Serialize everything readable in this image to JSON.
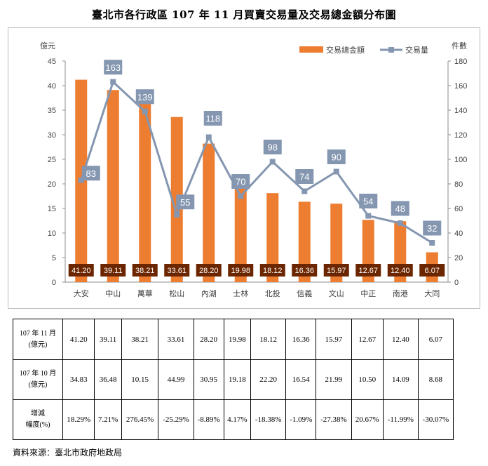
{
  "title": "臺北市各行政區 107 年 11 月買賣交易量及交易總金額分布圖",
  "source": "資料來源：臺北市政府地政局",
  "chart_data": {
    "type": "bar",
    "categories": [
      "大安",
      "中山",
      "萬華",
      "松山",
      "內湖",
      "士林",
      "北投",
      "信義",
      "文山",
      "中正",
      "南港",
      "大同"
    ],
    "series": [
      {
        "name": "交易總金額",
        "kind": "bar",
        "axis": "left",
        "color": "#ed7d31",
        "values": [
          41.2,
          39.11,
          38.21,
          33.61,
          28.2,
          19.98,
          18.12,
          16.36,
          15.97,
          12.67,
          12.4,
          6.07
        ]
      },
      {
        "name": "交易量",
        "kind": "line",
        "axis": "right",
        "color": "#8496b0",
        "values": [
          83,
          163,
          139,
          55,
          118,
          70,
          98,
          74,
          90,
          54,
          48,
          32
        ]
      }
    ],
    "bar_labels": [
      "41.20",
      "39.11",
      "38.21",
      "33.61",
      "28.20",
      "19.98",
      "18.12",
      "16.36",
      "15.97",
      "12.67",
      "12.40",
      "6.07"
    ],
    "line_labels": [
      "83",
      "163",
      "139",
      "55",
      "118",
      "70",
      "98",
      "74",
      "90",
      "54",
      "48",
      "32"
    ],
    "ylabel_left": "億元",
    "ylabel_right": "件數",
    "ylim_left": [
      0,
      45
    ],
    "yticks_left": [
      "0",
      "5",
      "10",
      "15",
      "20",
      "25",
      "30",
      "35",
      "40",
      "45"
    ],
    "ylim_right": [
      0,
      180
    ],
    "yticks_right": [
      "0",
      "20",
      "40",
      "60",
      "80",
      "100",
      "120",
      "140",
      "160",
      "180"
    ],
    "legend_position": "top-right",
    "grid": false,
    "label_box_color": "#6b2600",
    "line_label_box_color": "#8496b0"
  },
  "table": {
    "rows": [
      {
        "head_1": "107 年 11 月",
        "head_2": "(億元)",
        "values": [
          "41.20",
          "39.11",
          "38.21",
          "33.61",
          "28.20",
          "19.98",
          "18.12",
          "16.36",
          "15.97",
          "12.67",
          "12.40",
          "6.07"
        ]
      },
      {
        "head_1": "107 年 10 月",
        "head_2": "(億元)",
        "values": [
          "34.83",
          "36.48",
          "10.15",
          "44.99",
          "30.95",
          "19.18",
          "22.20",
          "16.54",
          "21.99",
          "10.50",
          "14.09",
          "8.68"
        ]
      },
      {
        "head_1": "增減",
        "head_2": "幅度(%)",
        "values": [
          "18.29%",
          "7.21%",
          "276.45%",
          "-25.29%",
          "-8.89%",
          "4.17%",
          "-18.38%",
          "-1.09%",
          "-27.38%",
          "20.67%",
          "-11.99%",
          "-30.07%"
        ]
      }
    ]
  }
}
